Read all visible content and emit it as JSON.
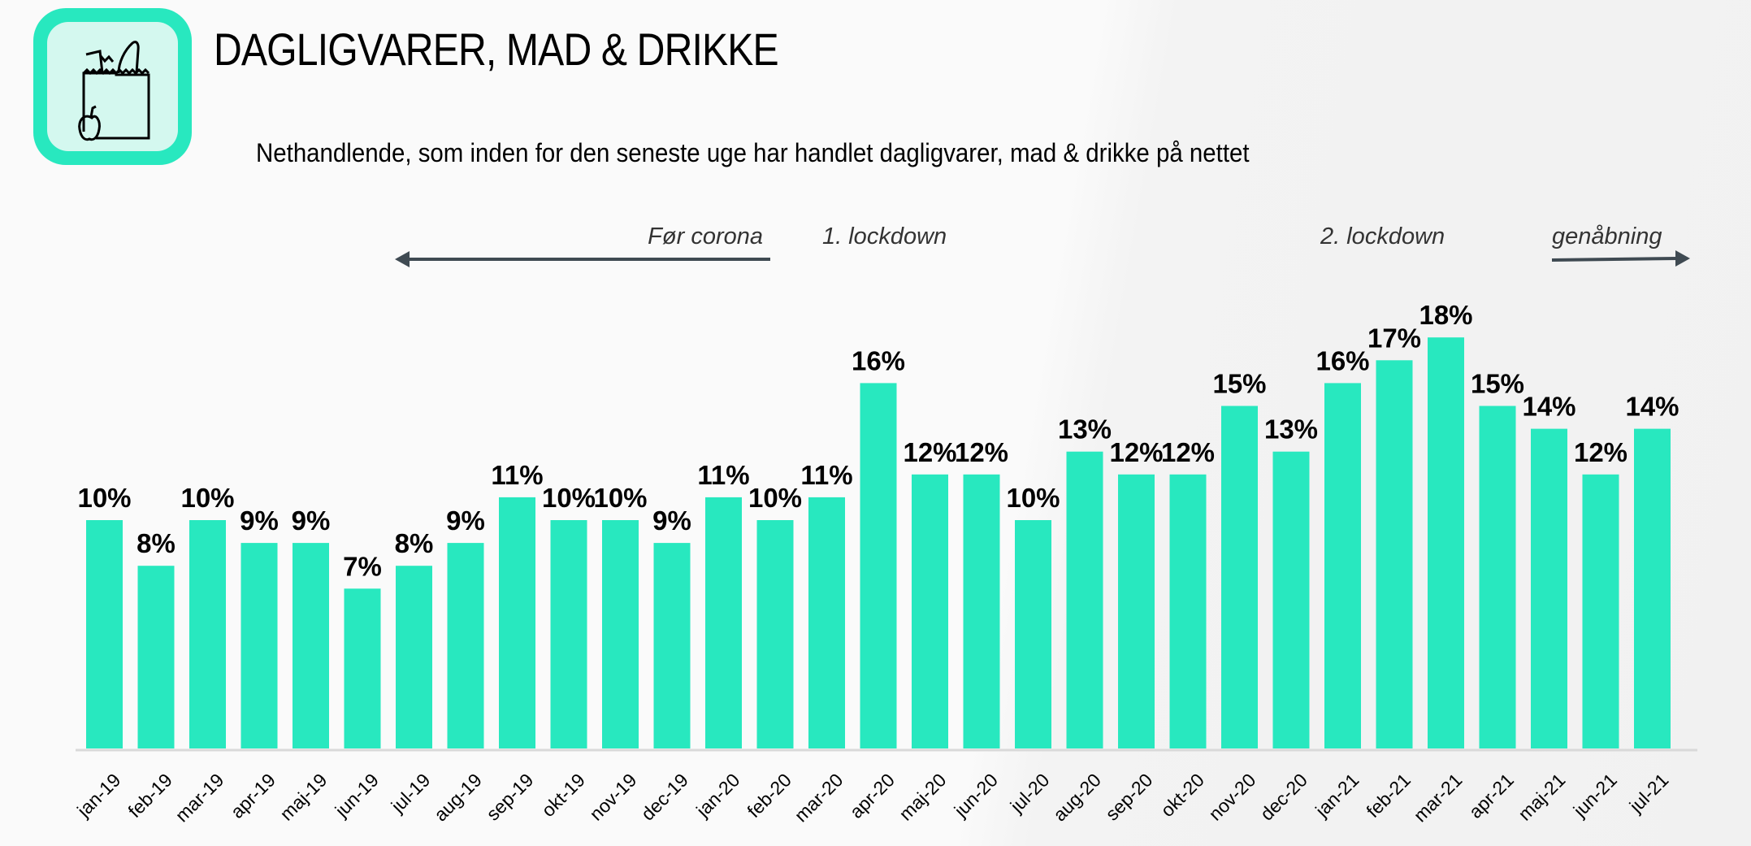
{
  "header": {
    "title": "DAGLIGVARER, MAD & DRIKKE",
    "subtitle": "Nethandlende, som inden for den seneste uge har handlet dagligvarer, mad & drikke på nettet",
    "icon": "grocery-bag-icon"
  },
  "annotations": {
    "before_corona": "Før corona",
    "lockdown1": "1. lockdown",
    "lockdown2": "2. lockdown",
    "reopening": "genåbning"
  },
  "colors": {
    "bar": "#28e8bf",
    "icon_bg": "#28e8bf",
    "arrow": "#3f4a52",
    "axis": "#d9d9d9"
  },
  "chart_data": {
    "type": "bar",
    "title": "Nethandlende, som inden for den seneste uge har handlet dagligvarer, mad & drikke på nettet",
    "xlabel": "",
    "ylabel": "",
    "ylim": [
      0,
      18
    ],
    "categories": [
      "jan-19",
      "feb-19",
      "mar-19",
      "apr-19",
      "maj-19",
      "jun-19",
      "jul-19",
      "aug-19",
      "sep-19",
      "okt-19",
      "nov-19",
      "dec-19",
      "jan-20",
      "feb-20",
      "mar-20",
      "apr-20",
      "maj-20",
      "jun-20",
      "jul-20",
      "aug-20",
      "sep-20",
      "okt-20",
      "nov-20",
      "dec-20",
      "jan-21",
      "feb-21",
      "mar-21",
      "apr-21",
      "maj-21",
      "jun-21",
      "jul-21"
    ],
    "values": [
      10,
      8,
      10,
      9,
      9,
      7,
      8,
      9,
      11,
      10,
      10,
      9,
      11,
      10,
      11,
      16,
      12,
      12,
      10,
      13,
      12,
      12,
      15,
      13,
      16,
      17,
      18,
      15,
      14,
      12,
      14
    ],
    "labels": [
      "10%",
      "8%",
      "10%",
      "9%",
      "9%",
      "7%",
      "8%",
      "9%",
      "11%",
      "10%",
      "10%",
      "9%",
      "11%",
      "10%",
      "11%",
      "16%",
      "12%",
      "12%",
      "10%",
      "13%",
      "12%",
      "12%",
      "15%",
      "13%",
      "16%",
      "17%",
      "18%",
      "15%",
      "14%",
      "12%",
      "14%"
    ],
    "unit": "%",
    "grid": false
  }
}
